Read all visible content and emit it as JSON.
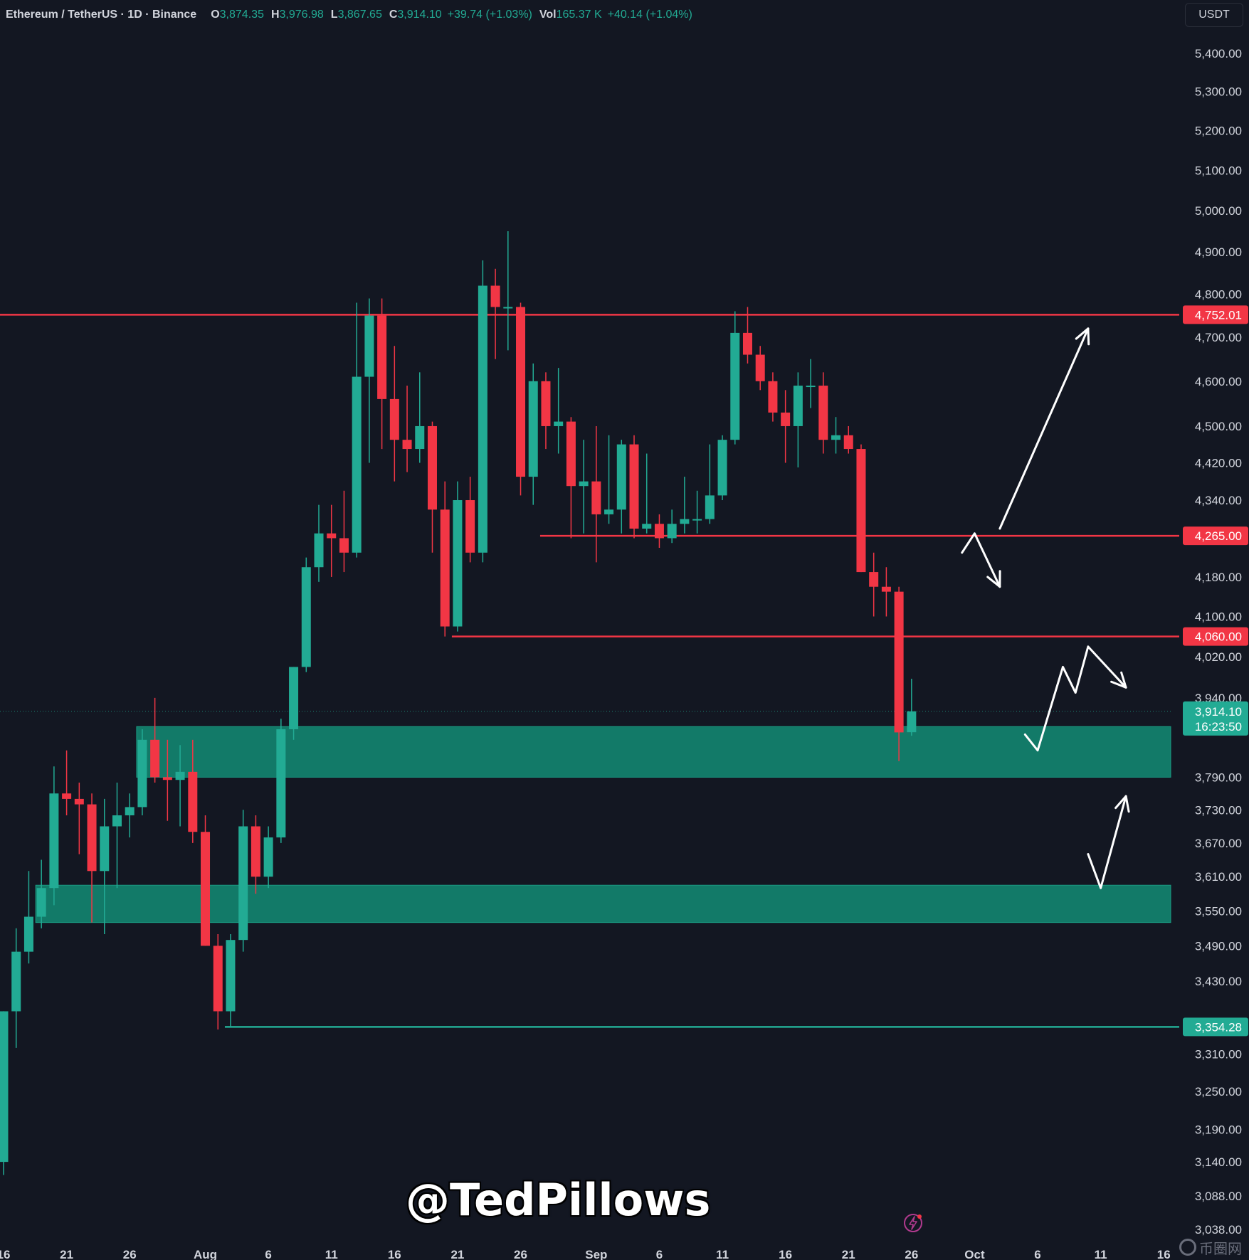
{
  "header": {
    "symbol": "Ethereum / TetherUS · 1D · Binance",
    "open_label": "O",
    "open": "3,874.35",
    "high_label": "H",
    "high": "3,976.98",
    "low_label": "L",
    "low": "3,867.65",
    "close_label": "C",
    "close": "3,914.10",
    "change": "+39.74 (+1.03%)",
    "vol_label": "Vol",
    "volume": "165.37 K",
    "vol_change": "+40.14 (+1.04%)"
  },
  "currency_button": "USDT",
  "watermark": "@TedPillows",
  "site_logo_text": "币圈网",
  "colors": {
    "background": "#131722",
    "up": "#22ab94",
    "down": "#f23645",
    "zone": "#127a68",
    "axis_text": "#d1d4dc",
    "arrow": "#ffffff"
  },
  "icons": {
    "flash": "flash-icon",
    "logo": "coin-circle-icon"
  },
  "chart_data": {
    "type": "candlestick",
    "y_axis": {
      "scale": "log",
      "ylim": [
        3015,
        5450
      ],
      "tick_labels": [
        "5,400.00",
        "5,300.00",
        "5,200.00",
        "5,100.00",
        "5,000.00",
        "4,900.00",
        "4,800.00",
        "4,700.00",
        "4,600.00",
        "4,500.00",
        "4,420.00",
        "4,340.00",
        "4,180.00",
        "4,100.00",
        "4,020.00",
        "3,940.00",
        "3,790.00",
        "3,730.00",
        "3,670.00",
        "3,610.00",
        "3,550.00",
        "3,490.00",
        "3,430.00",
        "3,310.00",
        "3,250.00",
        "3,190.00",
        "3,140.00",
        "3,088.00",
        "3,038.00"
      ],
      "tick_values": [
        5400,
        5300,
        5200,
        5100,
        5000,
        4900,
        4800,
        4700,
        4600,
        4500,
        4420,
        4340,
        4180,
        4100,
        4020,
        3940,
        3790,
        3730,
        3670,
        3610,
        3550,
        3490,
        3430,
        3310,
        3250,
        3190,
        3140,
        3088,
        3038
      ]
    },
    "x_axis": {
      "labels": [
        {
          "text": "16",
          "date": "2025-07-16"
        },
        {
          "text": "21",
          "date": "2025-07-21"
        },
        {
          "text": "26",
          "date": "2025-07-26"
        },
        {
          "text": "Aug",
          "date": "2025-08-01"
        },
        {
          "text": "6",
          "date": "2025-08-06"
        },
        {
          "text": "11",
          "date": "2025-08-11"
        },
        {
          "text": "16",
          "date": "2025-08-16"
        },
        {
          "text": "21",
          "date": "2025-08-21"
        },
        {
          "text": "26",
          "date": "2025-08-26"
        },
        {
          "text": "Sep",
          "date": "2025-09-01"
        },
        {
          "text": "6",
          "date": "2025-09-06"
        },
        {
          "text": "11",
          "date": "2025-09-11"
        },
        {
          "text": "16",
          "date": "2025-09-16"
        },
        {
          "text": "21",
          "date": "2025-09-21"
        },
        {
          "text": "26",
          "date": "2025-09-26"
        },
        {
          "text": "Oct",
          "date": "2025-10-01"
        },
        {
          "text": "6",
          "date": "2025-10-06"
        },
        {
          "text": "11",
          "date": "2025-10-11"
        },
        {
          "text": "16",
          "date": "2025-10-16"
        }
      ]
    },
    "candles": [
      {
        "date": "2025-07-16",
        "o": 3140,
        "h": 3380,
        "l": 3120,
        "c": 3380
      },
      {
        "date": "2025-07-17",
        "o": 3380,
        "h": 3520,
        "l": 3320,
        "c": 3480
      },
      {
        "date": "2025-07-18",
        "o": 3480,
        "h": 3620,
        "l": 3460,
        "c": 3540
      },
      {
        "date": "2025-07-19",
        "o": 3540,
        "h": 3640,
        "l": 3520,
        "c": 3590
      },
      {
        "date": "2025-07-20",
        "o": 3590,
        "h": 3810,
        "l": 3560,
        "c": 3760
      },
      {
        "date": "2025-07-21",
        "o": 3760,
        "h": 3840,
        "l": 3720,
        "c": 3750
      },
      {
        "date": "2025-07-22",
        "o": 3750,
        "h": 3780,
        "l": 3650,
        "c": 3740
      },
      {
        "date": "2025-07-23",
        "o": 3740,
        "h": 3760,
        "l": 3530,
        "c": 3620
      },
      {
        "date": "2025-07-24",
        "o": 3620,
        "h": 3750,
        "l": 3510,
        "c": 3700
      },
      {
        "date": "2025-07-25",
        "o": 3700,
        "h": 3780,
        "l": 3590,
        "c": 3720
      },
      {
        "date": "2025-07-26",
        "o": 3720,
        "h": 3760,
        "l": 3680,
        "c": 3735
      },
      {
        "date": "2025-07-27",
        "o": 3735,
        "h": 3880,
        "l": 3720,
        "c": 3860
      },
      {
        "date": "2025-07-28",
        "o": 3860,
        "h": 3940,
        "l": 3780,
        "c": 3790
      },
      {
        "date": "2025-07-29",
        "o": 3790,
        "h": 3860,
        "l": 3710,
        "c": 3785
      },
      {
        "date": "2025-07-30",
        "o": 3785,
        "h": 3850,
        "l": 3700,
        "c": 3800
      },
      {
        "date": "2025-07-31",
        "o": 3800,
        "h": 3860,
        "l": 3670,
        "c": 3690
      },
      {
        "date": "2025-08-01",
        "o": 3690,
        "h": 3720,
        "l": 3490,
        "c": 3490
      },
      {
        "date": "2025-08-02",
        "o": 3490,
        "h": 3510,
        "l": 3350,
        "c": 3380
      },
      {
        "date": "2025-08-03",
        "o": 3380,
        "h": 3510,
        "l": 3354,
        "c": 3500
      },
      {
        "date": "2025-08-04",
        "o": 3500,
        "h": 3730,
        "l": 3480,
        "c": 3700
      },
      {
        "date": "2025-08-05",
        "o": 3700,
        "h": 3720,
        "l": 3580,
        "c": 3610
      },
      {
        "date": "2025-08-06",
        "o": 3610,
        "h": 3700,
        "l": 3590,
        "c": 3680
      },
      {
        "date": "2025-08-07",
        "o": 3680,
        "h": 3900,
        "l": 3670,
        "c": 3880
      },
      {
        "date": "2025-08-08",
        "o": 3880,
        "h": 4000,
        "l": 3860,
        "c": 4000
      },
      {
        "date": "2025-08-09",
        "o": 4000,
        "h": 4220,
        "l": 3990,
        "c": 4200
      },
      {
        "date": "2025-08-10",
        "o": 4200,
        "h": 4330,
        "l": 4170,
        "c": 4270
      },
      {
        "date": "2025-08-11",
        "o": 4270,
        "h": 4330,
        "l": 4180,
        "c": 4260
      },
      {
        "date": "2025-08-12",
        "o": 4260,
        "h": 4360,
        "l": 4190,
        "c": 4230
      },
      {
        "date": "2025-08-13",
        "o": 4230,
        "h": 4780,
        "l": 4220,
        "c": 4610
      },
      {
        "date": "2025-08-14",
        "o": 4610,
        "h": 4790,
        "l": 4420,
        "c": 4750
      },
      {
        "date": "2025-08-15",
        "o": 4750,
        "h": 4790,
        "l": 4450,
        "c": 4560
      },
      {
        "date": "2025-08-16",
        "o": 4560,
        "h": 4680,
        "l": 4380,
        "c": 4470
      },
      {
        "date": "2025-08-17",
        "o": 4470,
        "h": 4590,
        "l": 4400,
        "c": 4450
      },
      {
        "date": "2025-08-18",
        "o": 4450,
        "h": 4620,
        "l": 4420,
        "c": 4500
      },
      {
        "date": "2025-08-19",
        "o": 4500,
        "h": 4510,
        "l": 4230,
        "c": 4320
      },
      {
        "date": "2025-08-20",
        "o": 4320,
        "h": 4380,
        "l": 4060,
        "c": 4080
      },
      {
        "date": "2025-08-21",
        "o": 4080,
        "h": 4380,
        "l": 4070,
        "c": 4340
      },
      {
        "date": "2025-08-22",
        "o": 4340,
        "h": 4390,
        "l": 4210,
        "c": 4230
      },
      {
        "date": "2025-08-23",
        "o": 4230,
        "h": 4880,
        "l": 4210,
        "c": 4820
      },
      {
        "date": "2025-08-24",
        "o": 4820,
        "h": 4860,
        "l": 4650,
        "c": 4770
      },
      {
        "date": "2025-08-25",
        "o": 4770,
        "h": 4950,
        "l": 4670,
        "c": 4770
      },
      {
        "date": "2025-08-26",
        "o": 4770,
        "h": 4780,
        "l": 4350,
        "c": 4390
      },
      {
        "date": "2025-08-27",
        "o": 4390,
        "h": 4640,
        "l": 4330,
        "c": 4600
      },
      {
        "date": "2025-08-28",
        "o": 4600,
        "h": 4620,
        "l": 4450,
        "c": 4500
      },
      {
        "date": "2025-08-29",
        "o": 4500,
        "h": 4630,
        "l": 4440,
        "c": 4510
      },
      {
        "date": "2025-08-30",
        "o": 4510,
        "h": 4520,
        "l": 4260,
        "c": 4370
      },
      {
        "date": "2025-08-31",
        "o": 4370,
        "h": 4470,
        "l": 4270,
        "c": 4380
      },
      {
        "date": "2025-09-01",
        "o": 4380,
        "h": 4500,
        "l": 4210,
        "c": 4310
      },
      {
        "date": "2025-09-02",
        "o": 4310,
        "h": 4480,
        "l": 4290,
        "c": 4320
      },
      {
        "date": "2025-09-03",
        "o": 4320,
        "h": 4470,
        "l": 4270,
        "c": 4460
      },
      {
        "date": "2025-09-04",
        "o": 4460,
        "h": 4480,
        "l": 4260,
        "c": 4280
      },
      {
        "date": "2025-09-05",
        "o": 4280,
        "h": 4440,
        "l": 4270,
        "c": 4290
      },
      {
        "date": "2025-09-06",
        "o": 4290,
        "h": 4310,
        "l": 4240,
        "c": 4260
      },
      {
        "date": "2025-09-07",
        "o": 4260,
        "h": 4320,
        "l": 4250,
        "c": 4290
      },
      {
        "date": "2025-09-08",
        "o": 4290,
        "h": 4390,
        "l": 4270,
        "c": 4300
      },
      {
        "date": "2025-09-09",
        "o": 4300,
        "h": 4360,
        "l": 4270,
        "c": 4300
      },
      {
        "date": "2025-09-10",
        "o": 4300,
        "h": 4460,
        "l": 4290,
        "c": 4350
      },
      {
        "date": "2025-09-11",
        "o": 4350,
        "h": 4480,
        "l": 4340,
        "c": 4470
      },
      {
        "date": "2025-09-12",
        "o": 4470,
        "h": 4760,
        "l": 4460,
        "c": 4710
      },
      {
        "date": "2025-09-13",
        "o": 4710,
        "h": 4770,
        "l": 4640,
        "c": 4660
      },
      {
        "date": "2025-09-14",
        "o": 4660,
        "h": 4680,
        "l": 4580,
        "c": 4600
      },
      {
        "date": "2025-09-15",
        "o": 4600,
        "h": 4620,
        "l": 4510,
        "c": 4530
      },
      {
        "date": "2025-09-16",
        "o": 4530,
        "h": 4580,
        "l": 4420,
        "c": 4500
      },
      {
        "date": "2025-09-17",
        "o": 4500,
        "h": 4620,
        "l": 4410,
        "c": 4590
      },
      {
        "date": "2025-09-18",
        "o": 4590,
        "h": 4650,
        "l": 4540,
        "c": 4590
      },
      {
        "date": "2025-09-19",
        "o": 4590,
        "h": 4620,
        "l": 4440,
        "c": 4470
      },
      {
        "date": "2025-09-20",
        "o": 4470,
        "h": 4520,
        "l": 4440,
        "c": 4480
      },
      {
        "date": "2025-09-21",
        "o": 4480,
        "h": 4500,
        "l": 4440,
        "c": 4450
      },
      {
        "date": "2025-09-22",
        "o": 4450,
        "h": 4460,
        "l": 4190,
        "c": 4190
      },
      {
        "date": "2025-09-23",
        "o": 4190,
        "h": 4230,
        "l": 4100,
        "c": 4160
      },
      {
        "date": "2025-09-24",
        "o": 4160,
        "h": 4200,
        "l": 4100,
        "c": 4150
      },
      {
        "date": "2025-09-25",
        "o": 4150,
        "h": 4160,
        "l": 3820,
        "c": 3874
      },
      {
        "date": "2025-09-26",
        "o": 3874.35,
        "h": 3976.98,
        "l": 3867.65,
        "c": 3914.1
      }
    ],
    "horizontal_lines": [
      {
        "value": 4752.01,
        "label": "4,752.01",
        "color": "#f23645",
        "start_date": "2025-07-16"
      },
      {
        "value": 4265.0,
        "label": "4,265.00",
        "color": "#f23645",
        "start_date": "2025-08-28"
      },
      {
        "value": 4060.0,
        "label": "4,060.00",
        "color": "#f23645",
        "start_date": "2025-08-21"
      },
      {
        "value": 3354.28,
        "label": "3,354.28",
        "color": "#22ab94",
        "start_date": "2025-08-03"
      }
    ],
    "last_price": {
      "value": 3914.1,
      "label": "3,914.10",
      "countdown": "16:23:50"
    },
    "zones": [
      {
        "from": 3790,
        "to": 3885,
        "start_date": "2025-07-27",
        "end_date": "2025-10-16"
      },
      {
        "from": 3530,
        "to": 3595,
        "start_date": "2025-07-19",
        "end_date": "2025-10-16"
      }
    ],
    "arrows": [
      {
        "points": [
          [
            "2025-09-30",
            4230
          ],
          [
            "2025-10-01",
            4270
          ],
          [
            "2025-10-03",
            4160
          ]
        ],
        "head": true
      },
      {
        "points": [
          [
            "2025-10-03",
            4280
          ],
          [
            "2025-10-10",
            4720
          ]
        ],
        "head": true
      },
      {
        "points": [
          [
            "2025-10-05",
            3870
          ],
          [
            "2025-10-06",
            3840
          ],
          [
            "2025-10-08",
            4000
          ],
          [
            "2025-10-09",
            3950
          ],
          [
            "2025-10-10",
            4040
          ],
          [
            "2025-10-13",
            3960
          ]
        ],
        "head": true
      },
      {
        "points": [
          [
            "2025-10-10",
            3650
          ],
          [
            "2025-10-11",
            3590
          ],
          [
            "2025-10-13",
            3755
          ]
        ],
        "head": true
      }
    ]
  }
}
